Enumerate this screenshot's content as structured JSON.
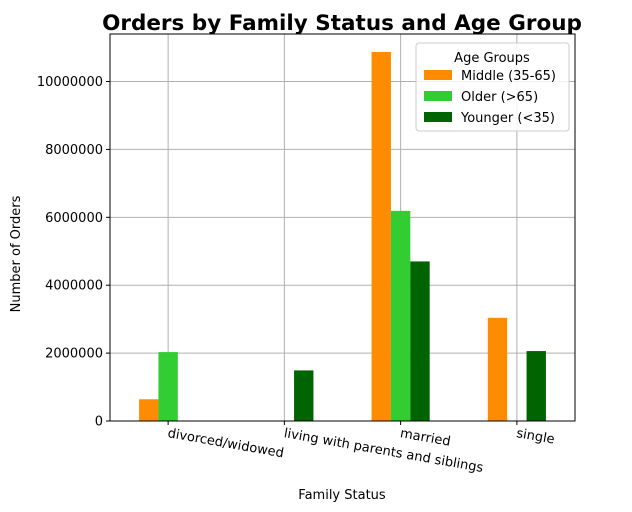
{
  "chart_data": {
    "type": "bar",
    "title": "Orders by Family Status and Age Group",
    "xlabel": "Family Status",
    "ylabel": "Number of Orders",
    "categories": [
      "divorced/widowed",
      "living with parents and siblings",
      "married",
      "single"
    ],
    "series": [
      {
        "name": "Middle (35-65)",
        "color": "#ff8c00",
        "values": [
          640000,
          0,
          10870000,
          3040000
        ]
      },
      {
        "name": "Older (>65)",
        "color": "#32cd32",
        "values": [
          2030000,
          0,
          6190000,
          0
        ]
      },
      {
        "name": "Younger (<35)",
        "color": "#006400",
        "values": [
          0,
          1490000,
          4700000,
          2060000
        ]
      }
    ],
    "ylim": [
      0,
      11400000
    ],
    "yticks": [
      0,
      2000000,
      4000000,
      6000000,
      8000000,
      10000000
    ],
    "ytick_labels": [
      "0",
      "2000000",
      "4000000",
      "6000000",
      "8000000",
      "10000000"
    ],
    "legend": {
      "title": "Age Groups",
      "position": "top-right"
    },
    "grid": true,
    "xtick_rotation": -10
  }
}
